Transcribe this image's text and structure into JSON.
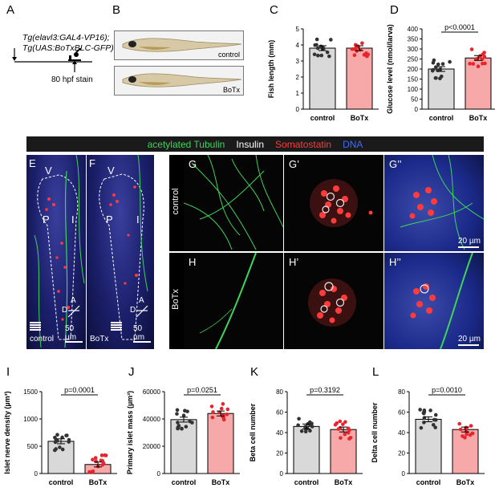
{
  "panels": {
    "A": "A",
    "B": "B",
    "C": "C",
    "D": "D",
    "E": "E",
    "F": "F",
    "G": "G",
    "G1": "G’",
    "G2": "G’’",
    "H": "H",
    "H1": "H’",
    "H2": "H’’",
    "I": "I",
    "J": "J",
    "K": "K",
    "L": "L"
  },
  "schematic": {
    "line1": "Tg(elavl3:GAL4-VP16);",
    "line2": "Tg(UAS:BoTxBLC-GFP)",
    "stain": "80 hpf stain"
  },
  "fish_labels": {
    "control": "control",
    "botx": "BoTx"
  },
  "stains": {
    "tubulin": "acetylated Tubulin",
    "insulin": "Insulin",
    "somatostatin": "Somatostatin",
    "dna": "DNA",
    "colors": {
      "tubulin": "#3fd35a",
      "insulin": "#ffffff",
      "somatostatin": "#ff3b3b",
      "dna": "#3d6bff"
    }
  },
  "micro": {
    "E": {
      "v": "V",
      "p": "P",
      "i": "I",
      "cond": "control",
      "axisA": "A",
      "axisD": "D",
      "scale": "50 µm"
    },
    "F": {
      "v": "V",
      "p": "P",
      "i": "I",
      "cond": "BoTx",
      "axisA": "A",
      "axisD": "D",
      "scale": "50 µm"
    },
    "row_control": "control",
    "row_botx": "BoTx",
    "scale_small": "20 µm"
  },
  "chart_data": [
    {
      "id": "C",
      "type": "bar",
      "categories": [
        "control",
        "BoTx"
      ],
      "values": [
        3.8,
        3.8
      ],
      "ylabel": "Fish length (mm)",
      "ylim": [
        0,
        5
      ],
      "yticks": [
        0,
        1,
        2,
        3,
        4,
        5
      ],
      "colors": [
        "#d9d9d9",
        "#f7a8a8"
      ],
      "pvalue": ""
    },
    {
      "id": "D",
      "type": "bar",
      "categories": [
        "control",
        "BoTx"
      ],
      "values": [
        200,
        255
      ],
      "ylabel": "Glucose level (nmol/larva)",
      "ylim": [
        0,
        400
      ],
      "yticks": [
        0,
        50,
        100,
        150,
        200,
        250,
        300,
        350,
        400
      ],
      "colors": [
        "#d9d9d9",
        "#f7a8a8"
      ],
      "pvalue": "p<0.0001"
    },
    {
      "id": "I",
      "type": "bar",
      "categories": [
        "control",
        "BoTx"
      ],
      "values": [
        590,
        165
      ],
      "ylabel": "Islet nerve density (µm³)",
      "ylim": [
        0,
        1500
      ],
      "yticks": [
        0,
        500,
        1000,
        1500
      ],
      "colors": [
        "#d9d9d9",
        "#f7a8a8"
      ],
      "pvalue": "p=0.0001"
    },
    {
      "id": "J",
      "type": "bar",
      "categories": [
        "control",
        "BoTx"
      ],
      "values": [
        39500,
        44000
      ],
      "ylabel": "Primary islet mass (µm³)",
      "ylim": [
        0,
        60000
      ],
      "yticks": [
        0,
        20000,
        40000,
        60000
      ],
      "colors": [
        "#d9d9d9",
        "#f7a8a8"
      ],
      "pvalue": "p=0.0251"
    },
    {
      "id": "K",
      "type": "bar",
      "categories": [
        "control",
        "BoTx"
      ],
      "values": [
        46,
        43
      ],
      "ylabel": "Beta cell number",
      "ylim": [
        0,
        80
      ],
      "yticks": [
        0,
        20,
        40,
        60,
        80
      ],
      "colors": [
        "#d9d9d9",
        "#f7a8a8"
      ],
      "pvalue": "p=0.3192"
    },
    {
      "id": "L",
      "type": "bar",
      "categories": [
        "control",
        "BoTx"
      ],
      "values": [
        53,
        43
      ],
      "ylabel": "Delta cell number",
      "ylim": [
        0,
        80
      ],
      "yticks": [
        0,
        20,
        40,
        60,
        80
      ],
      "colors": [
        "#d9d9d9",
        "#f7a8a8"
      ],
      "pvalue": "p=0.0010"
    }
  ]
}
